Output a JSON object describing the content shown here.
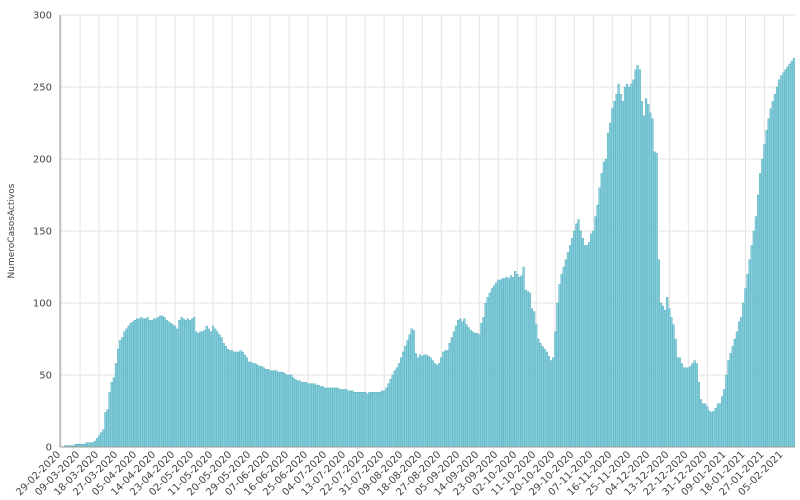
{
  "chart_data": {
    "type": "bar",
    "y_label": "NumeroCasosActivos",
    "color": "#86cfdc",
    "edge_color": "#4fa9bb",
    "grid": true,
    "ylim": [
      0,
      300
    ],
    "yticks": [
      0,
      50,
      100,
      150,
      200,
      250,
      300
    ],
    "categories": [
      "29-02-2020",
      null,
      null,
      null,
      null,
      null,
      null,
      null,
      null,
      "09-03-2020",
      null,
      null,
      null,
      null,
      null,
      null,
      null,
      null,
      "18-03-2020",
      null,
      null,
      null,
      null,
      null,
      null,
      null,
      null,
      "27-03-2020",
      null,
      null,
      null,
      null,
      null,
      null,
      null,
      null,
      "05-04-2020",
      null,
      null,
      null,
      null,
      null,
      null,
      null,
      null,
      "14-04-2020",
      null,
      null,
      null,
      null,
      null,
      null,
      null,
      null,
      "23-04-2020",
      null,
      null,
      null,
      null,
      null,
      null,
      null,
      null,
      "02-05-2020",
      null,
      null,
      null,
      null,
      null,
      null,
      null,
      null,
      "11-05-2020",
      null,
      null,
      null,
      null,
      null,
      null,
      null,
      null,
      "20-05-2020",
      null,
      null,
      null,
      null,
      null,
      null,
      null,
      null,
      "29-05-2020",
      null,
      null,
      null,
      null,
      null,
      null,
      null,
      null,
      "07-06-2020",
      null,
      null,
      null,
      null,
      null,
      null,
      null,
      null,
      "16-06-2020",
      null,
      null,
      null,
      null,
      null,
      null,
      null,
      null,
      "25-06-2020",
      null,
      null,
      null,
      null,
      null,
      null,
      null,
      null,
      "04-07-2020",
      null,
      null,
      null,
      null,
      null,
      null,
      null,
      null,
      "13-07-2020",
      null,
      null,
      null,
      null,
      null,
      null,
      null,
      null,
      "22-07-2020",
      null,
      null,
      null,
      null,
      null,
      null,
      null,
      null,
      "31-07-2020",
      null,
      null,
      null,
      null,
      null,
      null,
      null,
      null,
      "09-08-2020",
      null,
      null,
      null,
      null,
      null,
      null,
      null,
      null,
      "18-08-2020",
      null,
      null,
      null,
      null,
      null,
      null,
      null,
      null,
      "27-08-2020",
      null,
      null,
      null,
      null,
      null,
      null,
      null,
      null,
      "05-09-2020",
      null,
      null,
      null,
      null,
      null,
      null,
      null,
      null,
      "14-09-2020",
      null,
      null,
      null,
      null,
      null,
      null,
      null,
      null,
      "23-09-2020",
      null,
      null,
      null,
      null,
      null,
      null,
      null,
      null,
      "02-10-2020",
      null,
      null,
      null,
      null,
      null,
      null,
      null,
      null,
      "11-10-2020",
      null,
      null,
      null,
      null,
      null,
      null,
      null,
      null,
      "20-10-2020",
      null,
      null,
      null,
      null,
      null,
      null,
      null,
      null,
      "29-10-2020",
      null,
      null,
      null,
      null,
      null,
      null,
      null,
      null,
      "07-11-2020",
      null,
      null,
      null,
      null,
      null,
      null,
      null,
      null,
      "16-11-2020",
      null,
      null,
      null,
      null,
      null,
      null,
      null,
      null,
      "25-11-2020",
      null,
      null,
      null,
      null,
      null,
      null,
      null,
      null,
      "04-12-2020",
      null,
      null,
      null,
      null,
      null,
      null,
      null,
      null,
      "13-12-2020",
      null,
      null,
      null,
      null,
      null,
      null,
      null,
      null,
      "22-12-2020",
      null,
      null,
      null,
      null,
      null,
      null,
      null,
      null,
      "31-12-2020",
      null,
      null,
      null,
      null,
      null,
      null,
      null,
      null,
      "09-01-2021",
      null,
      null,
      null,
      null,
      null,
      null,
      null,
      null,
      "18-01-2021",
      null,
      null,
      null,
      null,
      null,
      null,
      null,
      null,
      "27-01-2021",
      null,
      null,
      null,
      null,
      null,
      null,
      null,
      null,
      "05-02-2021",
      null,
      null,
      null,
      null,
      null
    ],
    "values": [
      0,
      0,
      1,
      1,
      1,
      1,
      1,
      2,
      2,
      2,
      2,
      2,
      3,
      3,
      3,
      3,
      4,
      6,
      8,
      10,
      12,
      24,
      26,
      38,
      45,
      48,
      58,
      68,
      74,
      76,
      80,
      82,
      84,
      86,
      87,
      88,
      89,
      89,
      90,
      89,
      89,
      90,
      88,
      88,
      89,
      89,
      90,
      91,
      91,
      90,
      88,
      87,
      86,
      85,
      84,
      82,
      88,
      90,
      89,
      88,
      89,
      88,
      89,
      90,
      80,
      79,
      80,
      80,
      81,
      84,
      82,
      80,
      84,
      82,
      80,
      78,
      76,
      72,
      70,
      68,
      67,
      67,
      66,
      66,
      66,
      67,
      66,
      64,
      62,
      59,
      59,
      58,
      58,
      57,
      56,
      56,
      55,
      54,
      54,
      53,
      53,
      53,
      53,
      52,
      52,
      52,
      51,
      50,
      50,
      50,
      48,
      47,
      46,
      46,
      45,
      45,
      45,
      44,
      44,
      44,
      44,
      43,
      43,
      42,
      42,
      41,
      41,
      41,
      41,
      41,
      41,
      41,
      40,
      40,
      40,
      40,
      39,
      39,
      39,
      38,
      38,
      38,
      38,
      38,
      38,
      37,
      38,
      38,
      38,
      38,
      38,
      38,
      39,
      39,
      41,
      44,
      47,
      50,
      53,
      55,
      58,
      62,
      66,
      70,
      74,
      78,
      82,
      81,
      65,
      62,
      64,
      63,
      64,
      64,
      63,
      62,
      60,
      58,
      57,
      58,
      62,
      66,
      67,
      67,
      72,
      76,
      80,
      84,
      88,
      89,
      87,
      89,
      85,
      83,
      81,
      80,
      79,
      79,
      78,
      86,
      90,
      100,
      104,
      107,
      110,
      112,
      114,
      116,
      116,
      117,
      117,
      118,
      117,
      119,
      118,
      122,
      120,
      118,
      119,
      125,
      109,
      108,
      107,
      96,
      94,
      85,
      75,
      72,
      70,
      68,
      66,
      63,
      60,
      62,
      80,
      100,
      113,
      120,
      125,
      130,
      135,
      140,
      145,
      150,
      155,
      158,
      150,
      145,
      140,
      140,
      142,
      148,
      150,
      160,
      168,
      180,
      190,
      198,
      200,
      218,
      225,
      235,
      240,
      245,
      252,
      245,
      240,
      250,
      252,
      250,
      252,
      255,
      262,
      265,
      262,
      240,
      230,
      242,
      238,
      232,
      228,
      205,
      204,
      130,
      100,
      98,
      95,
      104,
      96,
      90,
      85,
      75,
      62,
      62,
      58,
      55,
      55,
      55,
      56,
      58,
      60,
      58,
      45,
      33,
      30,
      30,
      28,
      25,
      24,
      25,
      27,
      30,
      30,
      35,
      40,
      50,
      60,
      65,
      70,
      75,
      80,
      87,
      90,
      100,
      110,
      120,
      130,
      140,
      150,
      160,
      175,
      190,
      200,
      210,
      220,
      228,
      235,
      240,
      245,
      250,
      255,
      258,
      260,
      262,
      264,
      266,
      268,
      270
    ]
  }
}
